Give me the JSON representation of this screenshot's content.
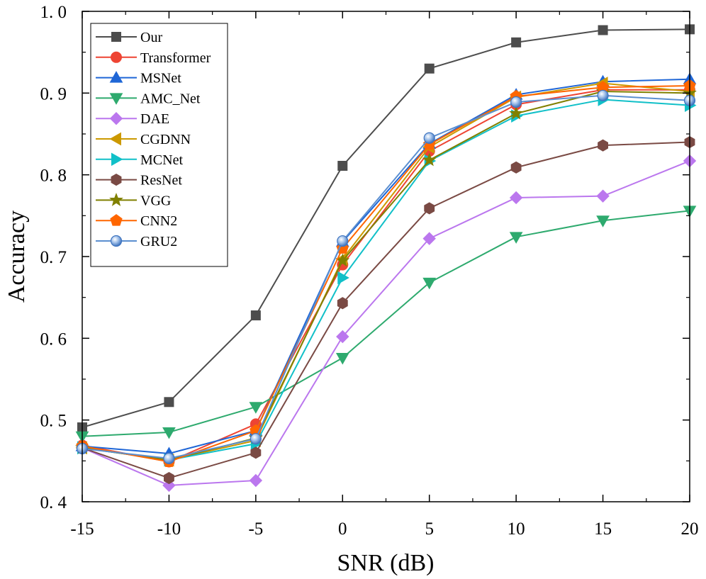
{
  "chart_data": {
    "type": "line",
    "title": "",
    "xlabel": "SNR (dB)",
    "ylabel": "Accuracy",
    "xlim": [
      -15,
      20
    ],
    "ylim": [
      0.4,
      1.0
    ],
    "x": [
      -15,
      -10,
      -5,
      0,
      5,
      10,
      15,
      20
    ],
    "xticks": [
      -15,
      -10,
      -5,
      0,
      5,
      10,
      15,
      20
    ],
    "xtick_labels": [
      "-15",
      "-10",
      "-5",
      "0",
      "5",
      "10",
      "15",
      "20"
    ],
    "yticks": [
      0.4,
      0.5,
      0.6,
      0.7,
      0.8,
      0.9,
      1.0
    ],
    "ytick_labels": [
      "0. 4",
      "0. 5",
      "0. 6",
      "0. 7",
      "0. 8",
      "0. 9",
      "1. 0"
    ],
    "grid": false,
    "legend_position": "top-left",
    "series": [
      {
        "name": "Our",
        "color": "#4d4d4d",
        "marker": "square",
        "values": [
          0.491,
          0.522,
          0.628,
          0.811,
          0.93,
          0.962,
          0.977,
          0.978
        ]
      },
      {
        "name": "Transformer",
        "color": "#ee4433",
        "marker": "circle",
        "values": [
          0.469,
          0.449,
          0.495,
          0.69,
          0.829,
          0.886,
          0.904,
          0.904
        ]
      },
      {
        "name": "MSNet",
        "color": "#1f66d6",
        "marker": "triangle-up",
        "values": [
          0.468,
          0.459,
          0.487,
          0.718,
          0.838,
          0.898,
          0.914,
          0.917
        ]
      },
      {
        "name": "AMC_Net",
        "color": "#2eaa6e",
        "marker": "triangle-down",
        "values": [
          0.48,
          0.485,
          0.516,
          0.576,
          0.668,
          0.724,
          0.744,
          0.756
        ]
      },
      {
        "name": "DAE",
        "color": "#bb77ee",
        "marker": "diamond",
        "values": [
          0.466,
          0.42,
          0.426,
          0.602,
          0.722,
          0.772,
          0.774,
          0.817
        ]
      },
      {
        "name": "CGDNN",
        "color": "#cc9900",
        "marker": "triangle-left",
        "values": [
          0.466,
          0.451,
          0.475,
          0.697,
          0.834,
          0.895,
          0.912,
          0.902
        ]
      },
      {
        "name": "MCNet",
        "color": "#11c0c8",
        "marker": "triangle-right",
        "values": [
          0.466,
          0.451,
          0.471,
          0.674,
          0.817,
          0.872,
          0.892,
          0.885
        ]
      },
      {
        "name": "ResNet",
        "color": "#7a4a44",
        "marker": "hexagon",
        "values": [
          0.466,
          0.429,
          0.46,
          0.643,
          0.759,
          0.809,
          0.836,
          0.84
        ]
      },
      {
        "name": "VGG",
        "color": "#808000",
        "marker": "star",
        "values": [
          0.466,
          0.451,
          0.478,
          0.695,
          0.818,
          0.875,
          0.902,
          0.9
        ]
      },
      {
        "name": "CNN2",
        "color": "#ff6600",
        "marker": "pentagon",
        "values": [
          0.468,
          0.449,
          0.487,
          0.71,
          0.837,
          0.896,
          0.907,
          0.909
        ]
      },
      {
        "name": "GRU2",
        "color": "#5b8fd0",
        "marker": "sphere",
        "values": [
          0.465,
          0.453,
          0.477,
          0.719,
          0.845,
          0.889,
          0.897,
          0.891
        ]
      }
    ]
  }
}
